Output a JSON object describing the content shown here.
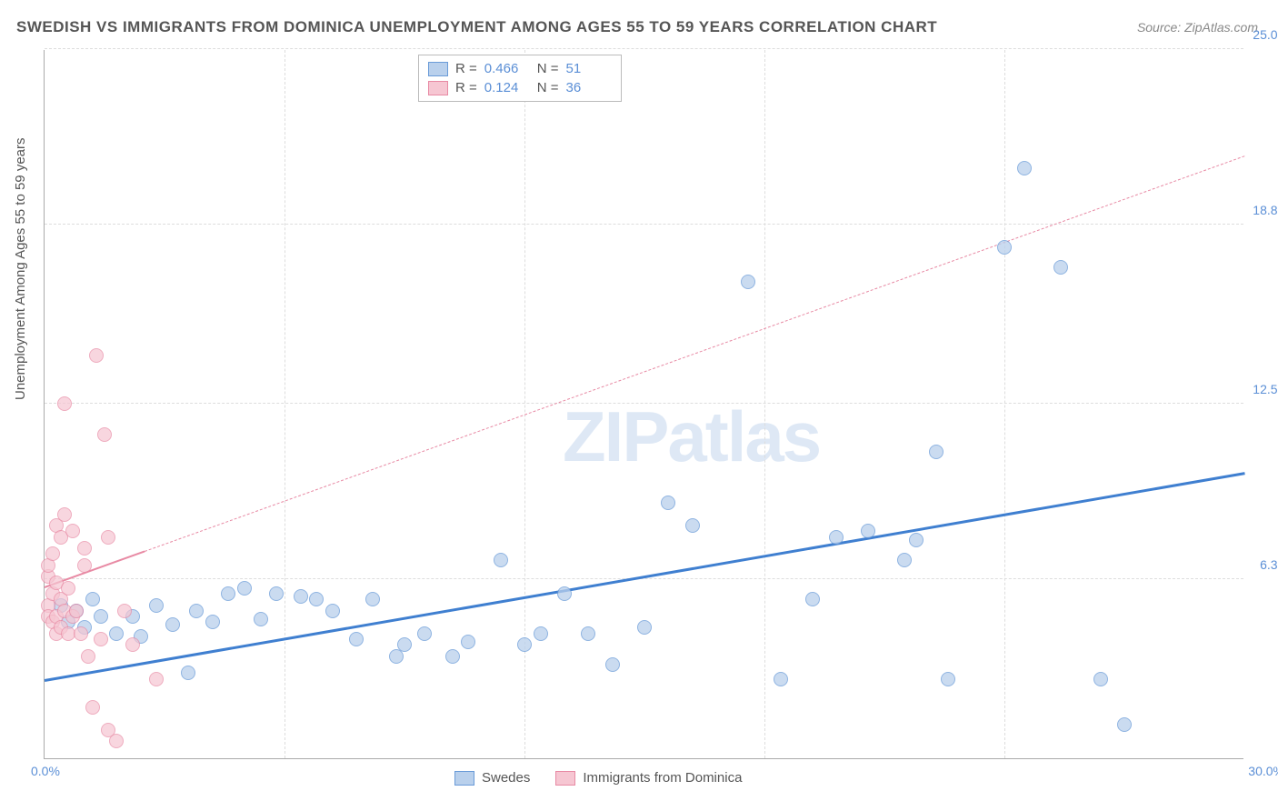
{
  "title": "SWEDISH VS IMMIGRANTS FROM DOMINICA UNEMPLOYMENT AMONG AGES 55 TO 59 YEARS CORRELATION CHART",
  "source": "Source: ZipAtlas.com",
  "ylabel": "Unemployment Among Ages 55 to 59 years",
  "watermark": "ZIPatlas",
  "chart": {
    "type": "scatter",
    "xlim": [
      0,
      30
    ],
    "ylim": [
      0,
      25
    ],
    "yticks": [
      6.3,
      12.5,
      18.8,
      25.0
    ],
    "ytick_labels": [
      "6.3%",
      "12.5%",
      "18.8%",
      "25.0%"
    ],
    "x_vgrid": [
      6,
      12,
      18,
      24
    ],
    "xtick_min_label": "0.0%",
    "xtick_max_label": "30.0%",
    "background_color": "#ffffff",
    "grid_color": "#dddddd",
    "axis_color": "#aaaaaa",
    "tick_color": "#5b8fd6",
    "marker_radius": 8,
    "marker_border_width": 1.3,
    "series": [
      {
        "key": "swedes",
        "label": "Swedes",
        "fill": "#b9d0ec",
        "stroke": "#6a9bd8",
        "fill_opacity": 0.75,
        "R": "0.466",
        "N": "51",
        "trend": {
          "x1": 0,
          "y1": 2.7,
          "x2": 30,
          "y2": 10.0,
          "width": 3,
          "color": "#3f7fd0",
          "dash": "solid"
        },
        "points": [
          [
            0.4,
            5.4
          ],
          [
            0.6,
            4.8
          ],
          [
            0.8,
            5.2
          ],
          [
            1.0,
            4.6
          ],
          [
            1.2,
            5.6
          ],
          [
            1.4,
            5.0
          ],
          [
            1.8,
            4.4
          ],
          [
            2.2,
            5.0
          ],
          [
            2.4,
            4.3
          ],
          [
            2.8,
            5.4
          ],
          [
            3.2,
            4.7
          ],
          [
            3.6,
            3.0
          ],
          [
            3.8,
            5.2
          ],
          [
            4.2,
            4.8
          ],
          [
            4.6,
            5.8
          ],
          [
            5.0,
            6.0
          ],
          [
            5.4,
            4.9
          ],
          [
            5.8,
            5.8
          ],
          [
            6.4,
            5.7
          ],
          [
            6.8,
            5.6
          ],
          [
            7.2,
            5.2
          ],
          [
            7.8,
            4.2
          ],
          [
            8.2,
            5.6
          ],
          [
            8.8,
            3.6
          ],
          [
            9.0,
            4.0
          ],
          [
            9.5,
            4.4
          ],
          [
            10.2,
            3.6
          ],
          [
            10.6,
            4.1
          ],
          [
            11.4,
            7.0
          ],
          [
            12.0,
            4.0
          ],
          [
            12.4,
            4.4
          ],
          [
            13.0,
            5.8
          ],
          [
            13.6,
            4.4
          ],
          [
            14.2,
            3.3
          ],
          [
            15.0,
            4.6
          ],
          [
            15.6,
            9.0
          ],
          [
            16.2,
            8.2
          ],
          [
            17.6,
            16.8
          ],
          [
            18.4,
            2.8
          ],
          [
            19.2,
            5.6
          ],
          [
            19.8,
            7.8
          ],
          [
            20.6,
            8.0
          ],
          [
            21.5,
            7.0
          ],
          [
            21.8,
            7.7
          ],
          [
            22.3,
            10.8
          ],
          [
            22.6,
            2.8
          ],
          [
            24.0,
            18.0
          ],
          [
            24.5,
            20.8
          ],
          [
            25.4,
            17.3
          ],
          [
            26.4,
            2.8
          ],
          [
            27.0,
            1.2
          ]
        ]
      },
      {
        "key": "dominica",
        "label": "Immigrants from Dominica",
        "fill": "#f6c6d2",
        "stroke": "#e88aa4",
        "fill_opacity": 0.7,
        "R": "0.124",
        "N": "36",
        "trend": {
          "x1": 0,
          "y1": 6.0,
          "x2": 30,
          "y2": 21.2,
          "width": 1.3,
          "color": "#e88aa4",
          "dash": "dashed",
          "solid_until_x": 2.5
        },
        "points": [
          [
            0.1,
            6.4
          ],
          [
            0.1,
            5.4
          ],
          [
            0.1,
            5.0
          ],
          [
            0.1,
            6.8
          ],
          [
            0.2,
            4.8
          ],
          [
            0.2,
            5.8
          ],
          [
            0.2,
            7.2
          ],
          [
            0.3,
            4.4
          ],
          [
            0.3,
            5.0
          ],
          [
            0.3,
            6.2
          ],
          [
            0.3,
            8.2
          ],
          [
            0.4,
            5.6
          ],
          [
            0.4,
            4.6
          ],
          [
            0.4,
            7.8
          ],
          [
            0.5,
            12.5
          ],
          [
            0.5,
            5.2
          ],
          [
            0.5,
            8.6
          ],
          [
            0.6,
            4.4
          ],
          [
            0.6,
            6.0
          ],
          [
            0.7,
            5.0
          ],
          [
            0.7,
            8.0
          ],
          [
            0.8,
            5.2
          ],
          [
            0.9,
            4.4
          ],
          [
            1.0,
            6.8
          ],
          [
            1.0,
            7.4
          ],
          [
            1.1,
            3.6
          ],
          [
            1.2,
            1.8
          ],
          [
            1.3,
            14.2
          ],
          [
            1.4,
            4.2
          ],
          [
            1.5,
            11.4
          ],
          [
            1.6,
            1.0
          ],
          [
            1.6,
            7.8
          ],
          [
            1.8,
            0.6
          ],
          [
            2.0,
            5.2
          ],
          [
            2.2,
            4.0
          ],
          [
            2.8,
            2.8
          ]
        ]
      }
    ]
  },
  "legend_top": {
    "r_label": "R =",
    "n_label": "N ="
  },
  "legend_bottom": {
    "items": [
      "Swedes",
      "Immigrants from Dominica"
    ]
  }
}
